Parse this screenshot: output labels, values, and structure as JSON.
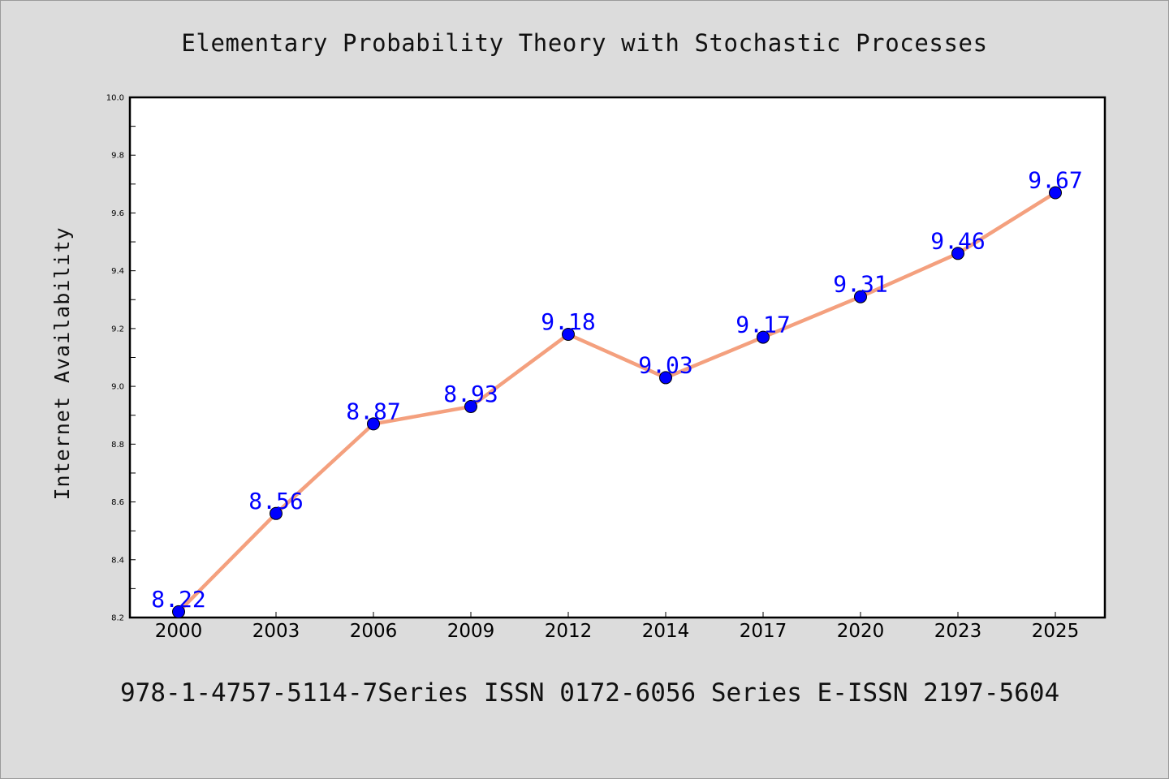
{
  "title": "Elementary Probability Theory with Stochastic Processes",
  "footer": "978-1-4757-5114-7Series ISSN 0172-6056 Series E-ISSN 2197-5604",
  "colors": {
    "background": "#dcdcdc",
    "plot_background": "#ffffff",
    "line": "#f4a07e",
    "marker_fill": "#0000ff",
    "label": "#0000ff"
  },
  "chart_data": {
    "type": "line",
    "title": "Elementary Probability Theory with Stochastic Processes",
    "xlabel": "",
    "ylabel": "Internet Availability",
    "categories": [
      "2000",
      "2003",
      "2006",
      "2009",
      "2012",
      "2014",
      "2017",
      "2020",
      "2023",
      "2025"
    ],
    "series": [
      {
        "values": [
          8.22,
          8.56,
          8.87,
          8.93,
          9.18,
          9.03,
          9.17,
          9.31,
          9.46,
          9.67
        ]
      }
    ],
    "data_labels": [
      "8.22",
      "8.56",
      "8.87",
      "8.93",
      "9.18",
      "9.03",
      "9.17",
      "9.31",
      "9.46",
      "9.67"
    ],
    "ylim": [
      8.2,
      10.0
    ],
    "yticks": [
      "8.2",
      "8.4",
      "8.6",
      "8.8",
      "9.0",
      "9.2",
      "9.4",
      "9.6",
      "9.8",
      "10.0"
    ],
    "grid": false,
    "legend": "none"
  }
}
